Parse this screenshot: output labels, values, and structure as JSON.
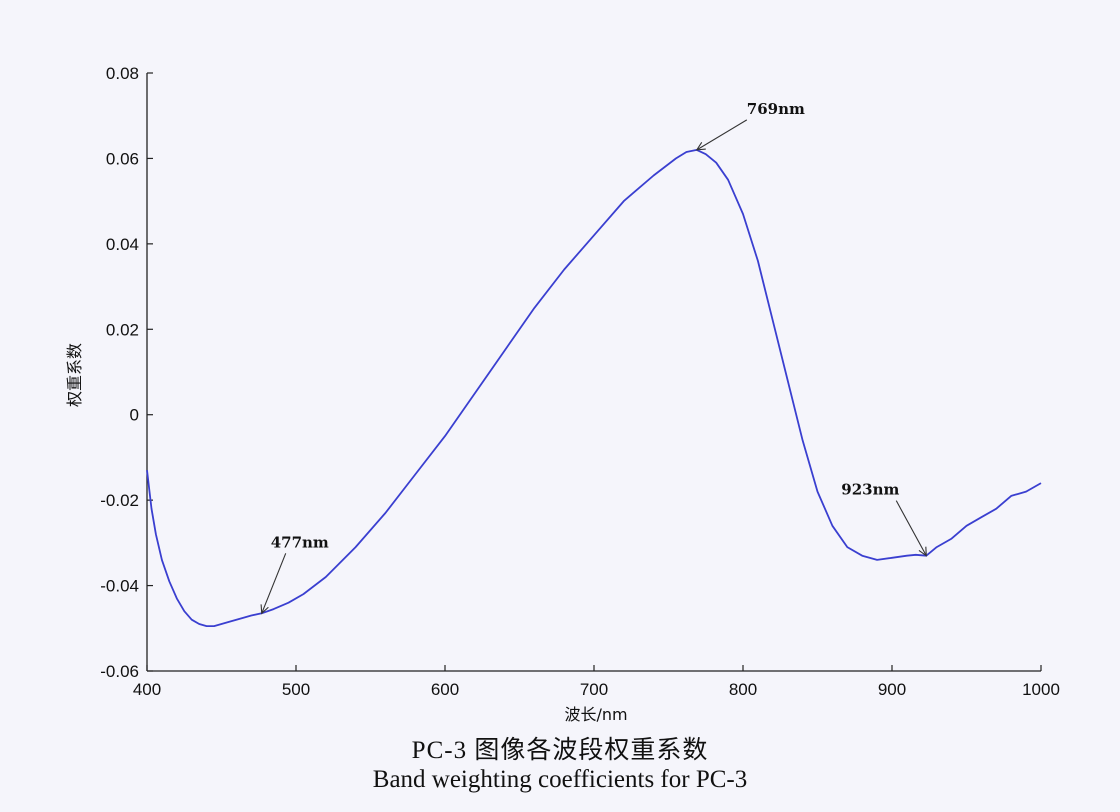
{
  "caption": {
    "chinese": "PC-3 图像各波段权重系数",
    "english": "Band weighting coefficients for PC-3"
  },
  "chart_data": {
    "type": "line",
    "xlabel": "波长/nm",
    "ylabel": "权重系数",
    "xlim": [
      400,
      1000
    ],
    "ylim": [
      -0.06,
      0.08
    ],
    "xticks": [
      400,
      500,
      600,
      700,
      800,
      900,
      1000
    ],
    "xtick_labels": [
      "400",
      "500",
      "600",
      "700",
      "800",
      "900",
      "1000"
    ],
    "yticks": [
      -0.06,
      -0.04,
      -0.02,
      0,
      0.02,
      0.04,
      0.06,
      0.08
    ],
    "ytick_labels": [
      "-0.06",
      "-0.04",
      "-0.02",
      "0",
      "0.02",
      "0.04",
      "0.06",
      "0.08"
    ],
    "grid": false,
    "line_color": "#3a3fd0",
    "series": [
      {
        "x": [
          400,
          403,
          406,
          410,
          415,
          420,
          425,
          430,
          435,
          440,
          445,
          450,
          455,
          460,
          465,
          470,
          477,
          485,
          495,
          505,
          520,
          540,
          560,
          580,
          600,
          620,
          640,
          660,
          680,
          700,
          720,
          740,
          755,
          762,
          769,
          775,
          782,
          790,
          800,
          810,
          820,
          830,
          840,
          850,
          860,
          870,
          880,
          890,
          900,
          910,
          916,
          923,
          930,
          940,
          950,
          960,
          970,
          980,
          990,
          1000
        ],
        "y": [
          -0.013,
          -0.022,
          -0.028,
          -0.034,
          -0.039,
          -0.043,
          -0.046,
          -0.048,
          -0.049,
          -0.0495,
          -0.0495,
          -0.049,
          -0.0485,
          -0.048,
          -0.0475,
          -0.047,
          -0.0465,
          -0.0455,
          -0.044,
          -0.042,
          -0.038,
          -0.031,
          -0.023,
          -0.014,
          -0.005,
          0.005,
          0.015,
          0.025,
          0.034,
          0.042,
          0.05,
          0.056,
          0.06,
          0.0615,
          0.062,
          0.061,
          0.059,
          0.055,
          0.047,
          0.036,
          0.022,
          0.008,
          -0.006,
          -0.018,
          -0.026,
          -0.031,
          -0.033,
          -0.034,
          -0.0335,
          -0.033,
          -0.0328,
          -0.033,
          -0.031,
          -0.029,
          -0.026,
          -0.024,
          -0.022,
          -0.019,
          -0.018,
          -0.016
        ]
      }
    ],
    "annotations": [
      {
        "text": "477nm",
        "x": 477,
        "y": -0.0465
      },
      {
        "text": "769nm",
        "x": 769,
        "y": 0.062
      },
      {
        "text": "923nm",
        "x": 923,
        "y": -0.033
      }
    ]
  }
}
